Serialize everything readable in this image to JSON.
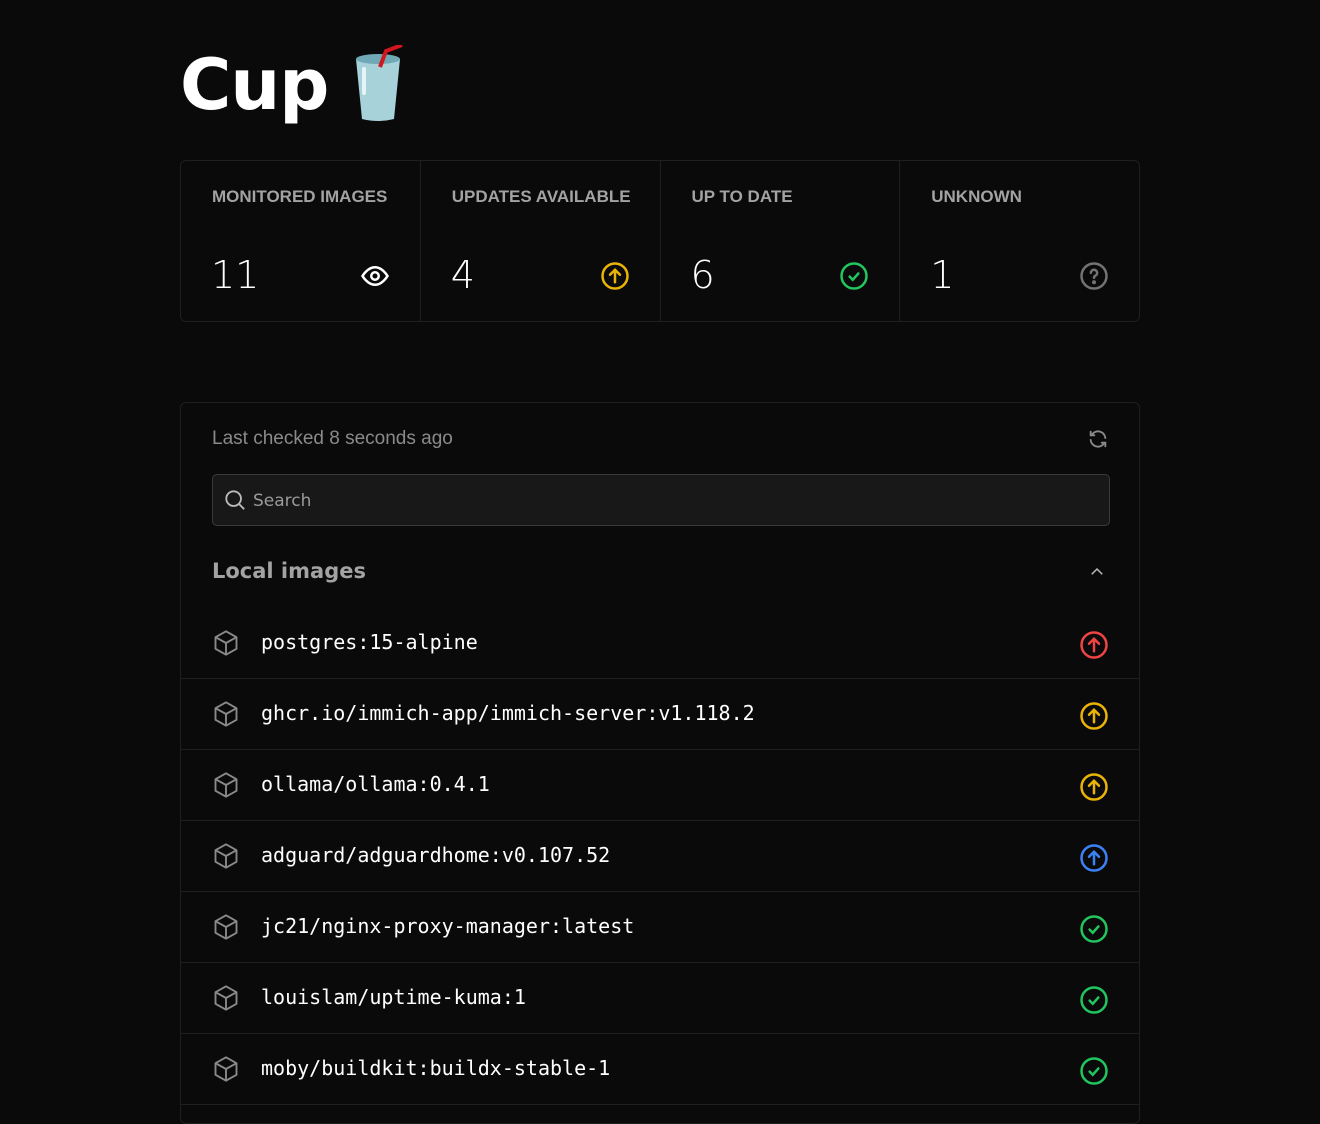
{
  "app": {
    "title": "Cup",
    "logo": "cup-with-straw-emoji"
  },
  "stats": [
    {
      "label": "MONITORED IMAGES",
      "value": "11",
      "icon": "eye-icon",
      "color": "#ffffff"
    },
    {
      "label": "UPDATES AVAILABLE",
      "value": "4",
      "icon": "arrow-up-circle-icon",
      "color": "#eab308"
    },
    {
      "label": "UP TO DATE",
      "value": "6",
      "icon": "check-circle-icon",
      "color": "#22c55e"
    },
    {
      "label": "UNKNOWN",
      "value": "1",
      "icon": "question-circle-icon",
      "color": "#737373"
    }
  ],
  "list": {
    "last_checked": "Last checked 8 seconds ago",
    "search_placeholder": "Search",
    "section_title": "Local images",
    "images": [
      {
        "name": "postgres:15-alpine",
        "status": "update",
        "color": "#ef4444"
      },
      {
        "name": "ghcr.io/immich-app/immich-server:v1.118.2",
        "status": "update",
        "color": "#eab308"
      },
      {
        "name": "ollama/ollama:0.4.1",
        "status": "update",
        "color": "#eab308"
      },
      {
        "name": "adguard/adguardhome:v0.107.52",
        "status": "update",
        "color": "#3b82f6"
      },
      {
        "name": "jc21/nginx-proxy-manager:latest",
        "status": "up-to-date",
        "color": "#22c55e"
      },
      {
        "name": "louislam/uptime-kuma:1",
        "status": "up-to-date",
        "color": "#22c55e"
      },
      {
        "name": "moby/buildkit:buildx-stable-1",
        "status": "up-to-date",
        "color": "#22c55e"
      }
    ]
  }
}
